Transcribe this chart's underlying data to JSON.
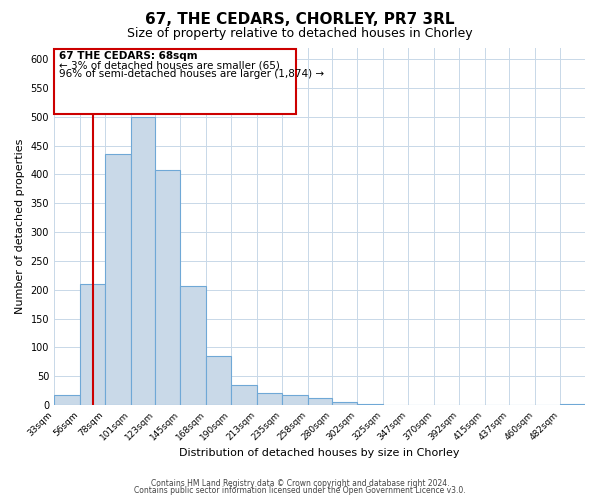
{
  "title": "67, THE CEDARS, CHORLEY, PR7 3RL",
  "subtitle": "Size of property relative to detached houses in Chorley",
  "xlabel": "Distribution of detached houses by size in Chorley",
  "ylabel": "Number of detached properties",
  "bin_labels": [
    "33sqm",
    "56sqm",
    "78sqm",
    "101sqm",
    "123sqm",
    "145sqm",
    "168sqm",
    "190sqm",
    "213sqm",
    "235sqm",
    "258sqm",
    "280sqm",
    "302sqm",
    "325sqm",
    "347sqm",
    "370sqm",
    "392sqm",
    "415sqm",
    "437sqm",
    "460sqm",
    "482sqm"
  ],
  "bin_edges": [
    33,
    56,
    78,
    101,
    123,
    145,
    168,
    190,
    213,
    235,
    258,
    280,
    302,
    325,
    347,
    370,
    392,
    415,
    437,
    460,
    482
  ],
  "bar_heights": [
    18,
    210,
    435,
    500,
    408,
    207,
    85,
    35,
    20,
    17,
    12,
    5,
    1,
    0,
    0,
    0,
    0,
    0,
    0,
    0,
    2
  ],
  "bar_color": "#c9d9e8",
  "bar_edge_color": "#6fa8d6",
  "vline_x": 68,
  "vline_color": "#cc0000",
  "ylim": [
    0,
    620
  ],
  "yticks": [
    0,
    50,
    100,
    150,
    200,
    250,
    300,
    350,
    400,
    450,
    500,
    550,
    600
  ],
  "annotation_title": "67 THE CEDARS: 68sqm",
  "annotation_line1": "← 3% of detached houses are smaller (65)",
  "annotation_line2": "96% of semi-detached houses are larger (1,874) →",
  "annotation_box_color": "#ffffff",
  "annotation_box_edge": "#cc0000",
  "footer1": "Contains HM Land Registry data © Crown copyright and database right 2024.",
  "footer2": "Contains public sector information licensed under the Open Government Licence v3.0.",
  "title_fontsize": 11,
  "subtitle_fontsize": 9,
  "axis_label_fontsize": 8,
  "tick_fontsize": 7,
  "ann_fontsize": 7.5
}
